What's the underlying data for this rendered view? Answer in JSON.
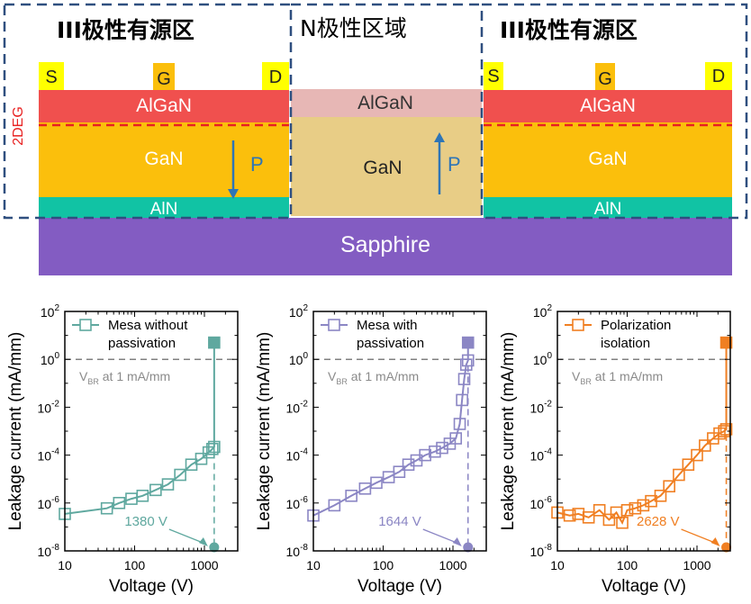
{
  "diagram": {
    "regions": {
      "left_label": "III极性有源区",
      "middle_label": "N极性区域",
      "right_label": "III极性有源区"
    },
    "contacts": {
      "source": "S",
      "gate": "G",
      "drain": "D"
    },
    "layers": {
      "algan": "AlGaN",
      "gan": "GaN",
      "aln": "AlN",
      "sapphire": "Sapphire"
    },
    "twodeg_label": "2DEG",
    "polarization_label": "P",
    "colors": {
      "algan": "#f0504e",
      "algan_n": "#e7b7b5",
      "gan": "#fbbf0c",
      "gan_n": "#e8cd86",
      "aln": "#11c3a4",
      "sapphire": "#835cc2",
      "contact": "#ffff00",
      "gate": "#fbbf0c",
      "dashed_box": "#2f4f7f",
      "twodeg": "#e82020",
      "arrow": "#2e75b6"
    }
  },
  "chart_data": [
    {
      "type": "scatter",
      "xlabel": "Voltage (V)",
      "ylabel": "Leakage current (mA/mm)",
      "x_scale": "log",
      "y_scale": "log",
      "xlim": [
        10,
        3000
      ],
      "ylim": [
        1e-08,
        100
      ],
      "x_ticks": [
        "10",
        "100",
        "1000"
      ],
      "y_ticks": [
        "10^-8",
        "10^-6",
        "10^-4",
        "10^-2",
        "10^0",
        "10^2"
      ],
      "reference_line": {
        "y": 1,
        "label_main": "V",
        "label_sub": "BR",
        "label_rest": " at 1 mA/mm"
      },
      "legend": [
        "Mesa without",
        "passivation"
      ],
      "color": "#5fa89f",
      "vbr_label": "1380 V",
      "vbr": 1380,
      "series": [
        {
          "name": "Mesa without passivation",
          "x": [
            10,
            40,
            60,
            90,
            130,
            200,
            300,
            450,
            650,
            900,
            1150,
            1300,
            1380,
            1380
          ],
          "y": [
            3.5e-07,
            6e-07,
            1e-06,
            1.5e-06,
            2e-06,
            3.5e-06,
            6e-06,
            1.5e-05,
            4e-05,
            7e-05,
            0.00013,
            0.00018,
            0.00022,
            5
          ]
        }
      ]
    },
    {
      "type": "scatter",
      "xlabel": "Voltage (V)",
      "ylabel": "Leakage current (mA/mm)",
      "x_scale": "log",
      "y_scale": "log",
      "xlim": [
        10,
        3000
      ],
      "ylim": [
        1e-08,
        100
      ],
      "x_ticks": [
        "10",
        "100",
        "1000"
      ],
      "y_ticks": [
        "10^-8",
        "10^-6",
        "10^-4",
        "10^-2",
        "10^0",
        "10^2"
      ],
      "reference_line": {
        "y": 1,
        "label_main": "V",
        "label_sub": "BR",
        "label_rest": " at 1 mA/mm"
      },
      "legend": [
        "Mesa with",
        "passivation"
      ],
      "color": "#8b86c4",
      "vbr_label": "1644 V",
      "vbr": 1644,
      "series": [
        {
          "name": "Mesa with passivation",
          "x": [
            10,
            20,
            35,
            55,
            80,
            120,
            170,
            230,
            300,
            400,
            550,
            700,
            900,
            1100,
            1250,
            1350,
            1450,
            1550,
            1644,
            1644
          ],
          "y": [
            3e-07,
            8e-07,
            2e-06,
            4e-06,
            7e-06,
            1.2e-05,
            2e-05,
            4e-05,
            6e-05,
            0.0001,
            0.00014,
            0.0002,
            0.0003,
            0.0005,
            0.002,
            0.02,
            0.15,
            0.6,
            0.9,
            5
          ]
        }
      ]
    },
    {
      "type": "scatter",
      "xlabel": "Voltage (V)",
      "ylabel": "Leakage current (mA/mm)",
      "x_scale": "log",
      "y_scale": "log",
      "xlim": [
        10,
        3000
      ],
      "ylim": [
        1e-08,
        100
      ],
      "x_ticks": [
        "10",
        "100",
        "1000"
      ],
      "y_ticks": [
        "10^-8",
        "10^-6",
        "10^-4",
        "10^-2",
        "10^0",
        "10^2"
      ],
      "reference_line": {
        "y": 1,
        "label_main": "V",
        "label_sub": "BR",
        "label_rest": " at 1 mA/mm"
      },
      "legend": [
        "Polarization",
        "isolation"
      ],
      "color": "#f07f22",
      "vbr_label": "2628 V",
      "vbr": 2628,
      "series": [
        {
          "name": "Polarization isolation",
          "x": [
            10,
            15,
            20,
            28,
            40,
            55,
            70,
            85,
            100,
            130,
            170,
            220,
            300,
            400,
            550,
            750,
            1000,
            1300,
            1700,
            2100,
            2450,
            2628,
            2628
          ],
          "y": [
            4e-07,
            3e-07,
            3.5e-07,
            2.5e-07,
            5e-07,
            2e-07,
            4e-07,
            1.5e-07,
            5e-07,
            6e-07,
            8e-07,
            1.2e-06,
            2e-06,
            5e-06,
            1.5e-05,
            4e-05,
            0.0001,
            0.00025,
            0.0005,
            0.0008,
            0.001,
            0.0012,
            5
          ]
        }
      ]
    }
  ]
}
